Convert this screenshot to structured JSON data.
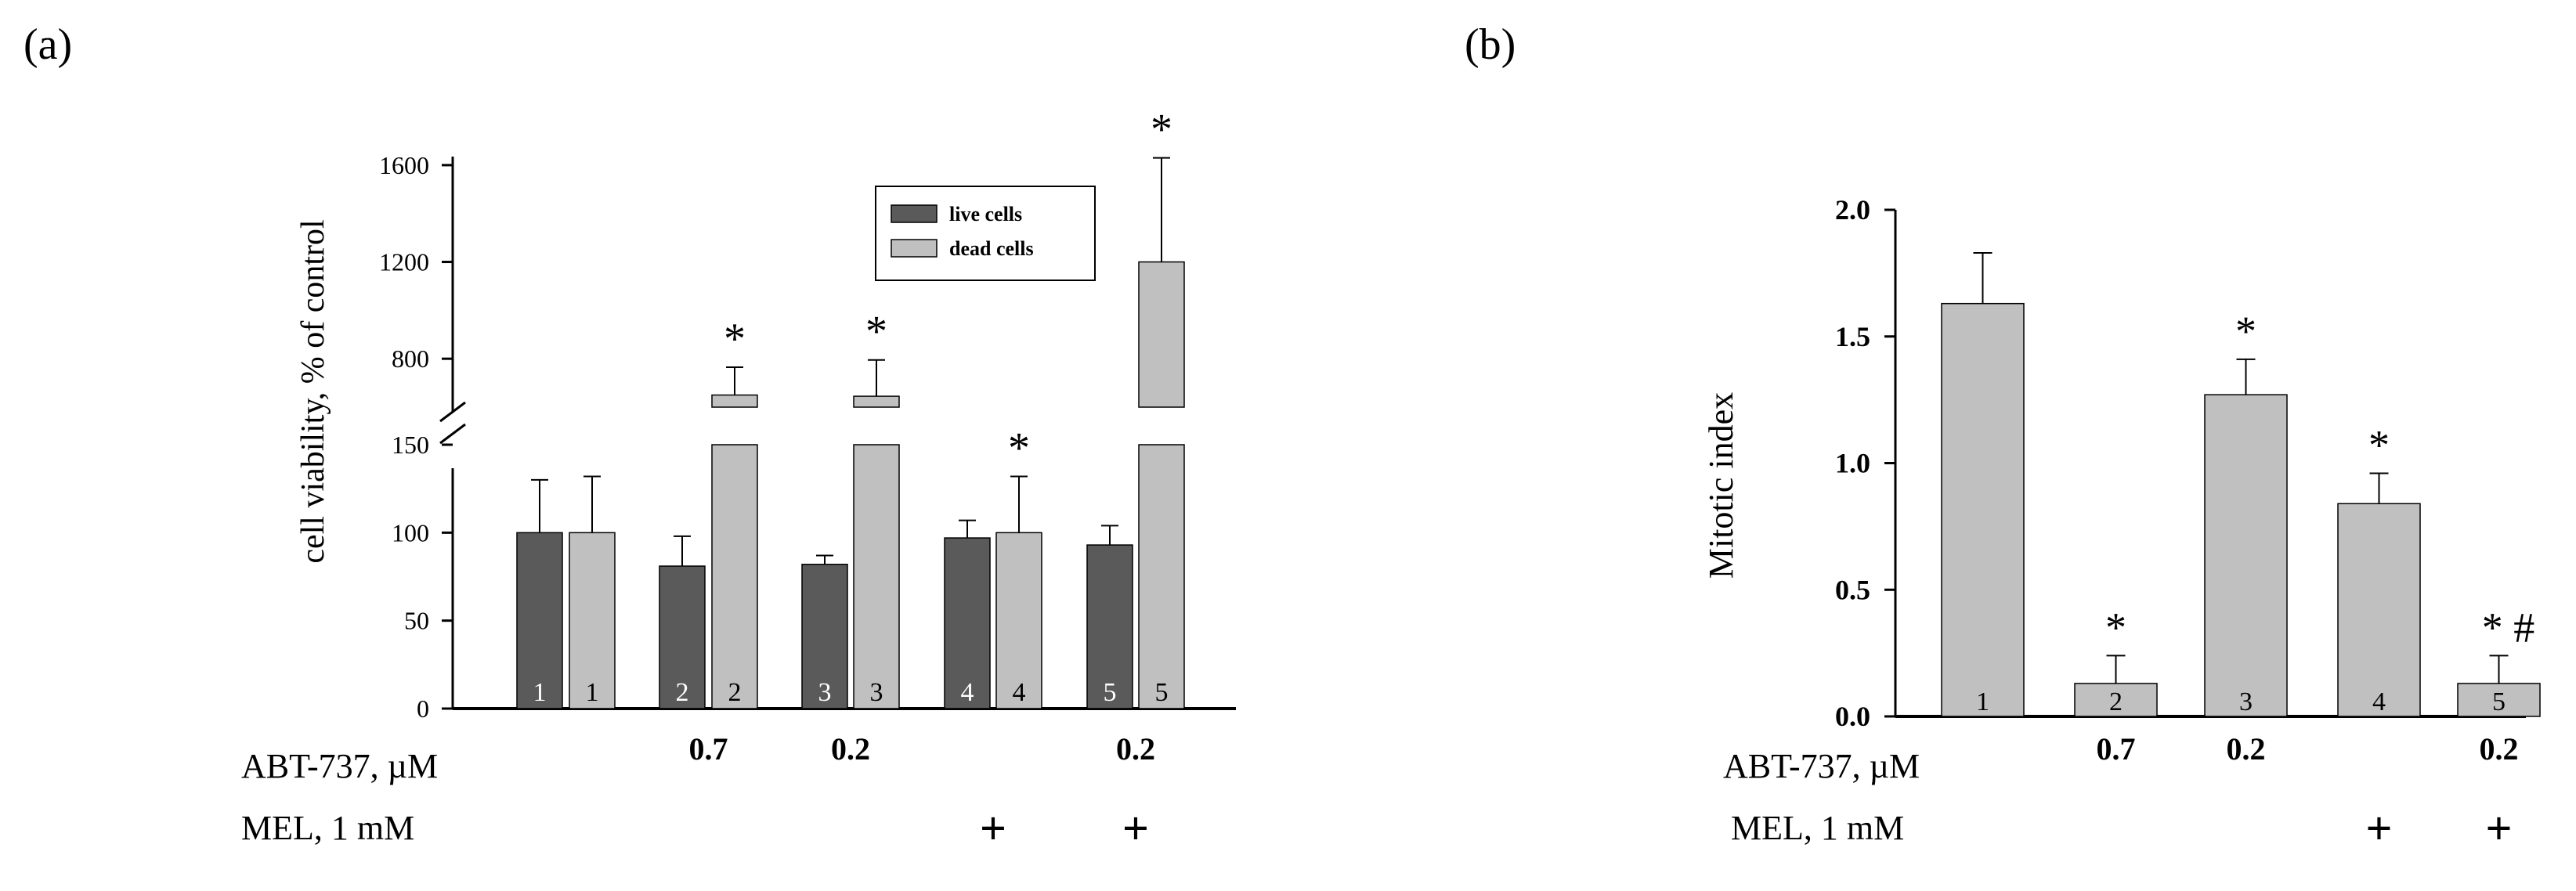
{
  "figure": {
    "panel_a_label": "(a)",
    "panel_b_label": "(b)"
  },
  "colors": {
    "live": "#5a5a5a",
    "dead": "#c0c0c0",
    "axis": "#000000",
    "bar_label_text": "#ffffff",
    "bar_label_text_light": "#000000"
  },
  "chart_data": [
    {
      "id": "panel-a",
      "type": "bar",
      "title": "",
      "ylabel": "cell viability, % of control",
      "xlabel": "",
      "axis_break": {
        "lower_range": [
          0,
          150
        ],
        "upper_range": [
          600,
          1700
        ]
      },
      "ylim": [
        0,
        1700
      ],
      "yticks_lower": [
        "0",
        "50",
        "100",
        "150"
      ],
      "yticks_upper": [
        "800",
        "1200",
        "1600"
      ],
      "categories": [
        "1",
        "2",
        "3",
        "4",
        "5"
      ],
      "series": [
        {
          "name": "live cells",
          "values": [
            100,
            81,
            82,
            97,
            93
          ],
          "errors": [
            30,
            17,
            5,
            10,
            11
          ]
        },
        {
          "name": "dead cells",
          "values": [
            100,
            650,
            645,
            100,
            1200
          ],
          "errors": [
            32,
            115,
            150,
            32,
            430
          ]
        }
      ],
      "significance": [
        {
          "category": "2",
          "series": "dead cells",
          "mark": "*"
        },
        {
          "category": "3",
          "series": "dead cells",
          "mark": "*"
        },
        {
          "category": "4",
          "series": "dead cells",
          "mark": "*"
        },
        {
          "category": "5",
          "series": "dead cells",
          "mark": "*"
        }
      ],
      "legend": {
        "placement": "top-right",
        "entries": [
          "live cells",
          "dead cells"
        ]
      },
      "row_labels": {
        "abt_label": "ABT-737, µM",
        "mel_label": "MEL, 1 mM"
      },
      "abt_values": [
        "",
        "0.7",
        "0.2",
        "",
        "0.2"
      ],
      "mel_values": [
        "",
        "",
        "",
        "+",
        "+"
      ],
      "grid": false
    },
    {
      "id": "panel-b",
      "type": "bar",
      "title": "",
      "ylabel": "Mitotic index",
      "xlabel": "",
      "ylim": [
        0,
        2.0
      ],
      "yticks": [
        "0.0",
        "0.5",
        "1.0",
        "1.5",
        "2.0"
      ],
      "categories": [
        "1",
        "2",
        "3",
        "4",
        "5"
      ],
      "series": [
        {
          "name": "mitotic index",
          "values": [
            1.63,
            0.13,
            1.27,
            0.84,
            0.13
          ],
          "errors": [
            0.2,
            0.11,
            0.14,
            0.12,
            0.11
          ]
        }
      ],
      "significance": [
        {
          "category": "2",
          "mark": "*"
        },
        {
          "category": "3",
          "mark": "*"
        },
        {
          "category": "4",
          "mark": "*"
        },
        {
          "category": "5",
          "mark": "* #"
        }
      ],
      "row_labels": {
        "abt_label": "ABT-737, µM",
        "mel_label": "MEL, 1 mM"
      },
      "abt_values": [
        "",
        "0.7",
        "0.2",
        "",
        "0.2"
      ],
      "mel_values": [
        "",
        "",
        "",
        "+",
        "+"
      ],
      "grid": false
    }
  ]
}
